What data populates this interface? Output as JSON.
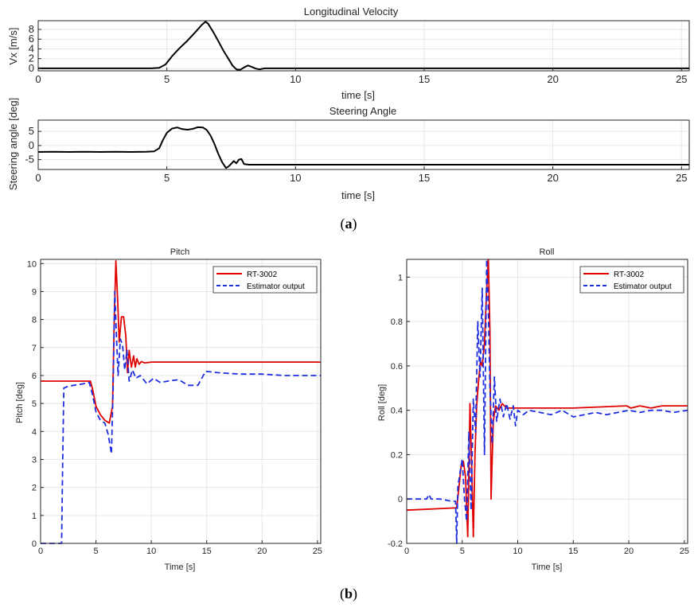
{
  "figure": {
    "caption_a": {
      "open": "(",
      "letter": "a",
      "close": ")"
    },
    "caption_b": {
      "open": "(",
      "letter": "b",
      "close": ")"
    }
  },
  "chart_data": [
    {
      "id": "vx",
      "type": "line",
      "title": "Longitudinal Velocity",
      "xlabel": "time [s]",
      "ylabel": "Vx [m/s]",
      "xlim": [
        0,
        25.3
      ],
      "ylim": [
        -0.5,
        9.8
      ],
      "xticks": [
        0,
        5,
        10,
        15,
        20,
        25
      ],
      "yticks": [
        0,
        2,
        4,
        6,
        8
      ],
      "grid": true,
      "series": [
        {
          "name": "Vx",
          "color": "#000000",
          "dash": "",
          "x": [
            0,
            4.4,
            4.7,
            4.95,
            5.2,
            5.5,
            5.8,
            6.1,
            6.35,
            6.5,
            6.6,
            6.8,
            7.0,
            7.2,
            7.4,
            7.55,
            7.7,
            7.85,
            8.0,
            8.15,
            8.3,
            8.45,
            8.6,
            8.8,
            9.2,
            25.3
          ],
          "y": [
            0,
            0,
            0.1,
            0.8,
            2.5,
            4.2,
            5.7,
            7.4,
            8.9,
            9.6,
            9.2,
            7.5,
            5.6,
            3.6,
            1.9,
            0.6,
            -0.2,
            -0.3,
            0.2,
            0.6,
            0.3,
            -0.05,
            -0.2,
            0.0,
            0.0,
            0.0
          ]
        }
      ]
    },
    {
      "id": "steer",
      "type": "line",
      "title": "Steering Angle",
      "xlabel": "time [s]",
      "ylabel": "Steering angle [deg]",
      "xlim": [
        0,
        25.3
      ],
      "ylim": [
        -8.5,
        9.0
      ],
      "xticks": [
        0,
        5,
        10,
        15,
        20,
        25
      ],
      "yticks": [
        -5,
        0,
        5
      ],
      "grid": true,
      "series": [
        {
          "name": "Steering angle",
          "color": "#000000",
          "dash": "",
          "x": [
            0,
            0.6,
            1.2,
            1.8,
            2.4,
            3.0,
            3.6,
            4.2,
            4.5,
            4.7,
            4.85,
            5.0,
            5.2,
            5.4,
            5.6,
            5.8,
            6.0,
            6.2,
            6.4,
            6.55,
            6.7,
            6.85,
            7.0,
            7.15,
            7.3,
            7.4,
            7.5,
            7.6,
            7.7,
            7.8,
            7.9,
            8.0,
            8.2,
            9.0,
            25.3
          ],
          "y": [
            -2.3,
            -2.2,
            -2.3,
            -2.2,
            -2.3,
            -2.2,
            -2.3,
            -2.2,
            -2.1,
            -1.0,
            2.0,
            4.5,
            6.0,
            6.4,
            5.8,
            5.6,
            5.9,
            6.5,
            6.4,
            5.5,
            3.5,
            0.5,
            -3.0,
            -6.0,
            -8.0,
            -7.4,
            -6.5,
            -5.5,
            -6.3,
            -5.0,
            -4.8,
            -6.6,
            -6.8,
            -6.8,
            -6.8
          ]
        }
      ]
    },
    {
      "id": "pitch",
      "type": "line",
      "title": "Pitch",
      "xlabel": "Time [s]",
      "ylabel": "Pitch [deg]",
      "xlim": [
        0,
        25.3
      ],
      "ylim": [
        0,
        10.15
      ],
      "xticks": [
        0,
        5,
        10,
        15,
        20,
        25
      ],
      "yticks": [
        0,
        1,
        2,
        3,
        4,
        5,
        6,
        7,
        8,
        9,
        10
      ],
      "grid": true,
      "legend": "top-right",
      "series": [
        {
          "name": "RT-3002",
          "color": "#e00000",
          "dash": "",
          "x": [
            0,
            4.5,
            4.7,
            5.0,
            5.4,
            5.8,
            6.2,
            6.5,
            6.65,
            6.8,
            6.95,
            7.1,
            7.3,
            7.5,
            7.7,
            7.85,
            8.0,
            8.2,
            8.4,
            8.55,
            8.7,
            8.9,
            9.1,
            9.4,
            10.0,
            25.3
          ],
          "y": [
            5.8,
            5.8,
            5.5,
            4.9,
            4.6,
            4.4,
            4.3,
            4.9,
            8.0,
            10.1,
            8.8,
            7.2,
            8.1,
            8.1,
            7.4,
            6.1,
            6.9,
            6.3,
            6.7,
            6.3,
            6.6,
            6.4,
            6.5,
            6.45,
            6.48,
            6.48
          ]
        },
        {
          "name": "Estimator output",
          "color": "#1e2ee0",
          "dash": "7,4",
          "x": [
            0,
            1.9,
            2.0,
            2.1,
            2.4,
            3.0,
            3.8,
            4.4,
            4.7,
            5.0,
            5.4,
            5.8,
            6.1,
            6.4,
            6.55,
            6.7,
            6.85,
            7.0,
            7.2,
            7.4,
            7.6,
            7.8,
            8.0,
            8.3,
            8.6,
            9.0,
            9.6,
            10.2,
            10.8,
            11.5,
            12.5,
            13.3,
            14.2,
            14.9,
            16.0,
            18.0,
            20.0,
            22.0,
            25.3
          ],
          "y": [
            0,
            0,
            3.0,
            5.55,
            5.6,
            5.65,
            5.7,
            5.75,
            5.3,
            4.7,
            4.4,
            4.3,
            3.9,
            3.2,
            5.5,
            9.0,
            7.4,
            6.0,
            7.3,
            7.1,
            6.2,
            6.9,
            5.8,
            6.2,
            5.9,
            6.0,
            5.7,
            5.9,
            5.75,
            5.8,
            5.85,
            5.65,
            5.65,
            6.15,
            6.1,
            6.05,
            6.05,
            6.0,
            6.0
          ]
        }
      ]
    },
    {
      "id": "roll",
      "type": "line",
      "title": "Roll",
      "xlabel": "Time [s]",
      "ylabel": "Roll [deg]",
      "xlim": [
        0,
        25.3
      ],
      "ylim": [
        -0.2,
        1.08
      ],
      "xticks": [
        0,
        5,
        10,
        15,
        20,
        25
      ],
      "yticks": [
        -0.2,
        0,
        0.2,
        0.4,
        0.6,
        0.8,
        1
      ],
      "grid": true,
      "legend": "top-right",
      "series": [
        {
          "name": "RT-3002",
          "color": "#e00000",
          "dash": "",
          "x": [
            0,
            4.4,
            4.5,
            4.7,
            4.9,
            5.1,
            5.3,
            5.5,
            5.7,
            5.85,
            6.0,
            6.15,
            6.3,
            6.5,
            6.65,
            6.8,
            7.0,
            7.2,
            7.35,
            7.5,
            7.6,
            7.8,
            8.0,
            8.3,
            8.6,
            9.0,
            9.5,
            10.0,
            12.0,
            15.0,
            19.8,
            20.2,
            21.0,
            22.0,
            23.0,
            25.3
          ],
          "y": [
            -0.05,
            -0.04,
            -0.04,
            0.05,
            0.15,
            0.17,
            0.1,
            -0.17,
            0.43,
            0.15,
            -0.17,
            0.2,
            0.42,
            0.55,
            0.62,
            0.6,
            0.7,
            0.95,
            1.08,
            0.75,
            0.0,
            0.35,
            0.42,
            0.4,
            0.43,
            0.41,
            0.41,
            0.41,
            0.41,
            0.41,
            0.42,
            0.41,
            0.42,
            0.41,
            0.42,
            0.42
          ]
        },
        {
          "name": "Estimator output",
          "color": "#1e2ee0",
          "dash": "7,4",
          "x": [
            0,
            1.8,
            2.0,
            2.2,
            3.0,
            4.0,
            4.4,
            4.5,
            4.6,
            4.8,
            5.0,
            5.2,
            5.4,
            5.6,
            5.8,
            6.0,
            6.2,
            6.4,
            6.6,
            6.8,
            7.0,
            7.2,
            7.35,
            7.5,
            7.7,
            7.9,
            8.1,
            8.4,
            8.7,
            9.0,
            9.3,
            9.6,
            9.8,
            10.0,
            10.5,
            11.0,
            12.0,
            13.0,
            14.0,
            15.0,
            16.0,
            17.0,
            18.0,
            19.0,
            20.0,
            21.0,
            22.0,
            23.0,
            24.0,
            25.3
          ],
          "y": [
            0.0,
            0.0,
            0.02,
            0.0,
            0.0,
            -0.01,
            -0.01,
            -0.2,
            0.05,
            0.12,
            0.18,
            0.0,
            -0.1,
            0.3,
            -0.05,
            0.45,
            0.3,
            0.8,
            0.55,
            0.95,
            0.2,
            1.08,
            0.85,
            0.5,
            0.25,
            0.55,
            0.35,
            0.45,
            0.37,
            0.43,
            0.36,
            0.42,
            0.33,
            0.4,
            0.38,
            0.4,
            0.39,
            0.38,
            0.4,
            0.37,
            0.38,
            0.39,
            0.38,
            0.39,
            0.4,
            0.39,
            0.4,
            0.4,
            0.39,
            0.4
          ]
        }
      ]
    }
  ]
}
